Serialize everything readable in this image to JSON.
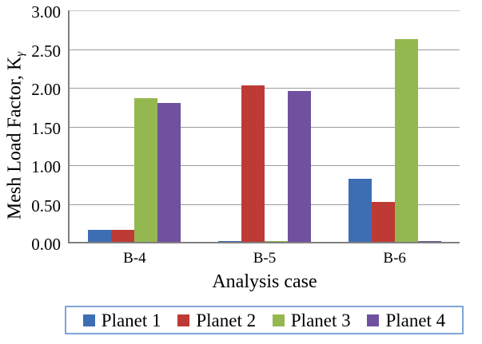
{
  "chart_data": {
    "type": "bar",
    "title": "",
    "categories": [
      "B-4",
      "B-5",
      "B-6"
    ],
    "series": [
      {
        "name": "Planet 1",
        "color": "#3d6eb4",
        "values": [
          0.16,
          0.02,
          0.82
        ]
      },
      {
        "name": "Planet 2",
        "color": "#be3a34",
        "values": [
          0.16,
          2.03,
          0.53
        ]
      },
      {
        "name": "Planet 3",
        "color": "#94b84f",
        "values": [
          1.87,
          0.02,
          2.63
        ]
      },
      {
        "name": "Planet 4",
        "color": "#70519f",
        "values": [
          1.8,
          1.96,
          0.02
        ]
      }
    ],
    "xlabel": "Analysis case",
    "ylabel": "Mesh Load Factor, Kγ",
    "ylabel_main": "Mesh Load Factor, K",
    "ylabel_sub": "γ",
    "ylim": [
      0,
      3
    ],
    "ytick_step": 0.5,
    "ytick_labels": [
      "0.00",
      "0.50",
      "1.00",
      "1.50",
      "2.00",
      "2.50",
      "3.00"
    ],
    "grid": "horizontal",
    "legend_position": "bottom",
    "legend_border_color": "#7fa5d6",
    "gridline_color": "#9b9b9b",
    "axis_color": "#7f7f7f",
    "background_color": "#ffffff"
  }
}
